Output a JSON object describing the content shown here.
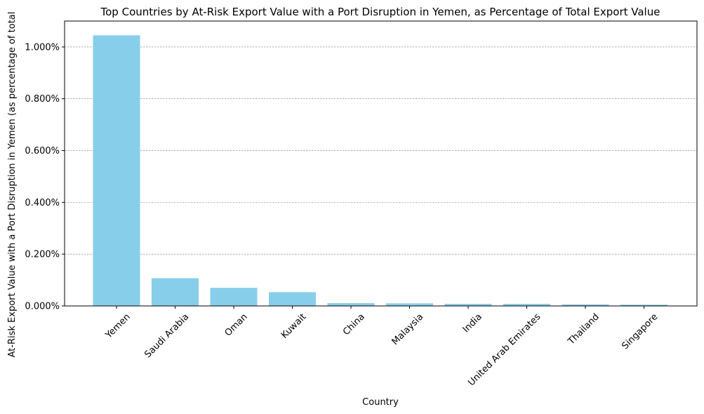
{
  "chart_data": {
    "type": "bar",
    "title": "Top Countries by At-Risk Export Value with a Port Disruption in Yemen, as Percentage of Total Export Value",
    "xlabel": "Country",
    "ylabel": "At-Risk Export Value with a Port Disruption in Yemen (as percentage of total",
    "categories": [
      "Yemen",
      "Saudi Arabia",
      "Oman",
      "Kuwait",
      "China",
      "Malaysia",
      "India",
      "United Arab Emirates",
      "Thailand",
      "Singapore"
    ],
    "values": [
      1.045,
      0.107,
      0.07,
      0.053,
      0.011,
      0.01,
      0.008,
      0.008,
      0.006,
      0.005
    ],
    "ylim": [
      0,
      1.1
    ],
    "yticks": [
      0,
      0.2,
      0.4,
      0.6,
      0.8,
      1.0
    ],
    "ytick_labels": [
      "0.000%",
      "0.200%",
      "0.400%",
      "0.600%",
      "0.800%",
      "1.000%"
    ],
    "grid": "y-dashed",
    "bar_color": "#87ceeb",
    "grid_color": "#808080"
  }
}
